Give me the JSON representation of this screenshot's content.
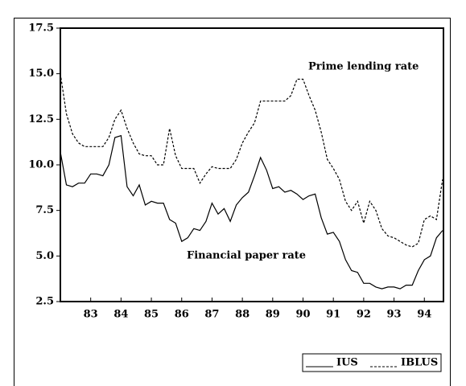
{
  "chart_data": {
    "type": "line",
    "x": [
      82.0,
      82.2,
      82.4,
      82.6,
      82.8,
      83.0,
      83.2,
      83.4,
      83.6,
      83.8,
      84.0,
      84.2,
      84.4,
      84.6,
      84.8,
      85.0,
      85.2,
      85.4,
      85.6,
      85.8,
      86.0,
      86.2,
      86.4,
      86.6,
      86.8,
      87.0,
      87.2,
      87.4,
      87.6,
      87.8,
      88.0,
      88.2,
      88.4,
      88.6,
      88.8,
      89.0,
      89.2,
      89.4,
      89.6,
      89.8,
      90.0,
      90.2,
      90.4,
      90.6,
      90.8,
      91.0,
      91.2,
      91.4,
      91.6,
      91.8,
      92.0,
      92.2,
      92.4,
      92.6,
      92.8,
      93.0,
      93.2,
      93.4,
      93.6,
      93.8,
      94.0,
      94.2,
      94.4,
      94.6
    ],
    "series": [
      {
        "name": "IUS",
        "color": "#000000",
        "dash": "solid",
        "values": [
          10.7,
          8.9,
          8.8,
          9.0,
          9.0,
          9.5,
          9.5,
          9.4,
          10.0,
          11.5,
          11.6,
          8.8,
          8.3,
          8.9,
          7.8,
          8.0,
          7.9,
          7.9,
          7.0,
          6.8,
          5.8,
          6.0,
          6.5,
          6.4,
          6.9,
          7.9,
          7.3,
          7.6,
          6.9,
          7.8,
          8.2,
          8.5,
          9.4,
          10.4,
          9.7,
          8.7,
          8.8,
          8.5,
          8.6,
          8.4,
          8.1,
          8.3,
          8.4,
          7.1,
          6.2,
          6.3,
          5.8,
          4.8,
          4.2,
          4.1,
          3.5,
          3.5,
          3.3,
          3.2,
          3.3,
          3.3,
          3.2,
          3.4,
          3.4,
          4.2,
          4.8,
          5.0,
          6.0,
          6.4
        ]
      },
      {
        "name": "IBLUS",
        "color": "#000000",
        "dash": "dashed",
        "values": [
          15.0,
          12.8,
          11.7,
          11.2,
          11.0,
          11.0,
          11.0,
          11.0,
          11.5,
          12.5,
          13.0,
          12.0,
          11.2,
          10.6,
          10.5,
          10.5,
          10.0,
          10.0,
          12.0,
          10.5,
          9.8,
          9.8,
          9.8,
          9.0,
          9.5,
          9.9,
          9.8,
          9.8,
          9.8,
          10.3,
          11.2,
          11.8,
          12.3,
          13.5,
          13.5,
          13.5,
          13.5,
          13.5,
          13.8,
          14.7,
          14.7,
          13.8,
          13.0,
          11.8,
          10.3,
          9.8,
          9.2,
          8.0,
          7.5,
          8.0,
          6.8,
          8.0,
          7.5,
          6.5,
          6.1,
          6.0,
          5.8,
          5.6,
          5.5,
          5.7,
          7.0,
          7.2,
          7.0,
          9.2
        ]
      }
    ],
    "annotations": [
      "Prime lending rate",
      "Financial paper rate"
    ],
    "xlim": [
      82,
      94.63
    ],
    "xticks": [
      83,
      84,
      85,
      86,
      87,
      88,
      89,
      90,
      91,
      92,
      93,
      94
    ],
    "ylim": [
      2.5,
      17.5
    ],
    "yticks": [
      {
        "value": 2.5,
        "label": "2.5"
      },
      {
        "value": 5,
        "label": "5.0"
      },
      {
        "value": 7.5,
        "label": "7.5"
      },
      {
        "value": 10,
        "label": "10.0"
      },
      {
        "value": 12.5,
        "label": "12.5"
      },
      {
        "value": 15,
        "label": "15.0"
      },
      {
        "value": 17.5,
        "label": "17.5"
      }
    ],
    "legend": "bottom-right"
  }
}
